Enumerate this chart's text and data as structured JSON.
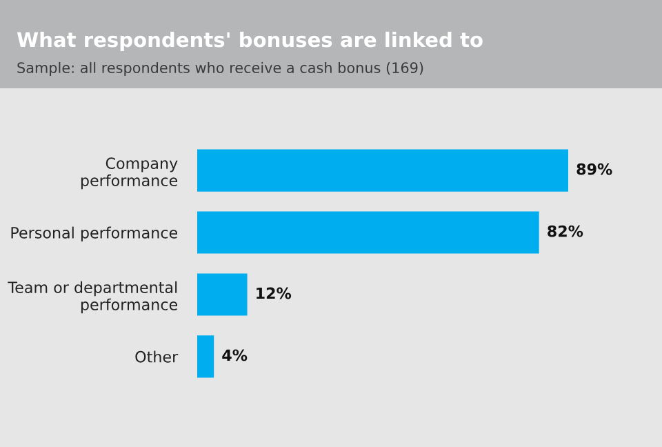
{
  "chart_data": {
    "type": "bar",
    "orientation": "horizontal",
    "title": "What respondents' bonuses are linked to",
    "subtitle": "Sample: all respondents who receive a cash bonus (169)",
    "categories": [
      "Company\nperformance",
      "Personal performance",
      "Team or departmental\nperformance",
      "Other"
    ],
    "values": [
      89,
      82,
      12,
      4
    ],
    "value_labels": [
      "89%",
      "82%",
      "12%",
      "4%"
    ],
    "color": "#00aeef",
    "tick_labels": "y",
    "grid": false,
    "legend": false
  }
}
